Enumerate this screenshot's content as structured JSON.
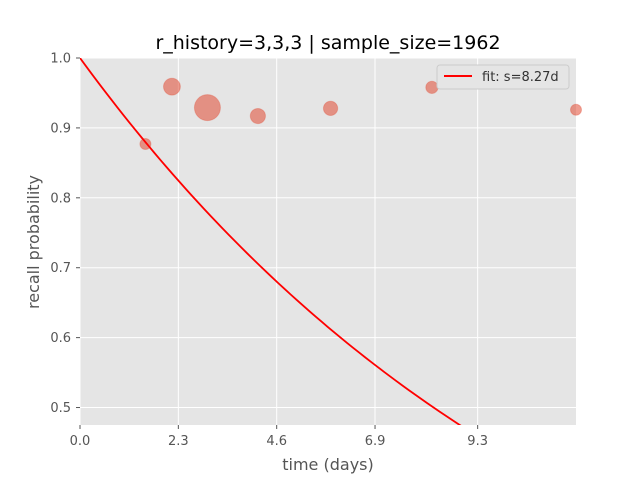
{
  "chart_data": {
    "type": "scatter",
    "title": "r_history=3,3,3 | sample_size=1962",
    "xlabel": "time (days)",
    "ylabel": "recall probability",
    "xlim": [
      0,
      11.6
    ],
    "ylim": [
      0.475,
      1.0
    ],
    "xticks": [
      0.0,
      2.3,
      4.6,
      6.9,
      9.3
    ],
    "xtick_labels": [
      "0.0",
      "2.3",
      "4.6",
      "6.9",
      "9.3"
    ],
    "yticks": [
      0.5,
      0.6,
      0.7,
      0.8,
      0.9,
      1.0
    ],
    "ytick_labels": [
      "0.5",
      "0.6",
      "0.7",
      "0.8",
      "0.9",
      "1.0"
    ],
    "grid": true,
    "legend_position": "top-right",
    "series": [
      {
        "kind": "scatter",
        "color": "#e24a33",
        "points": [
          {
            "x": 1.53,
            "y": 0.877,
            "weight": 0.18
          },
          {
            "x": 2.15,
            "y": 0.959,
            "weight": 0.42
          },
          {
            "x": 2.98,
            "y": 0.929,
            "weight": 1.0
          },
          {
            "x": 4.16,
            "y": 0.917,
            "weight": 0.34
          },
          {
            "x": 5.86,
            "y": 0.928,
            "weight": 0.3
          },
          {
            "x": 8.23,
            "y": 0.958,
            "weight": 0.22
          },
          {
            "x": 11.6,
            "y": 0.926,
            "weight": 0.18
          }
        ]
      },
      {
        "kind": "line",
        "name": "fit: s=8.27d",
        "color": "#ff0000",
        "stability_days": 8.27
      }
    ],
    "colors": {
      "plot_background": "#e5e5e5",
      "grid": "#ffffff",
      "tick_text": "#555555"
    }
  }
}
